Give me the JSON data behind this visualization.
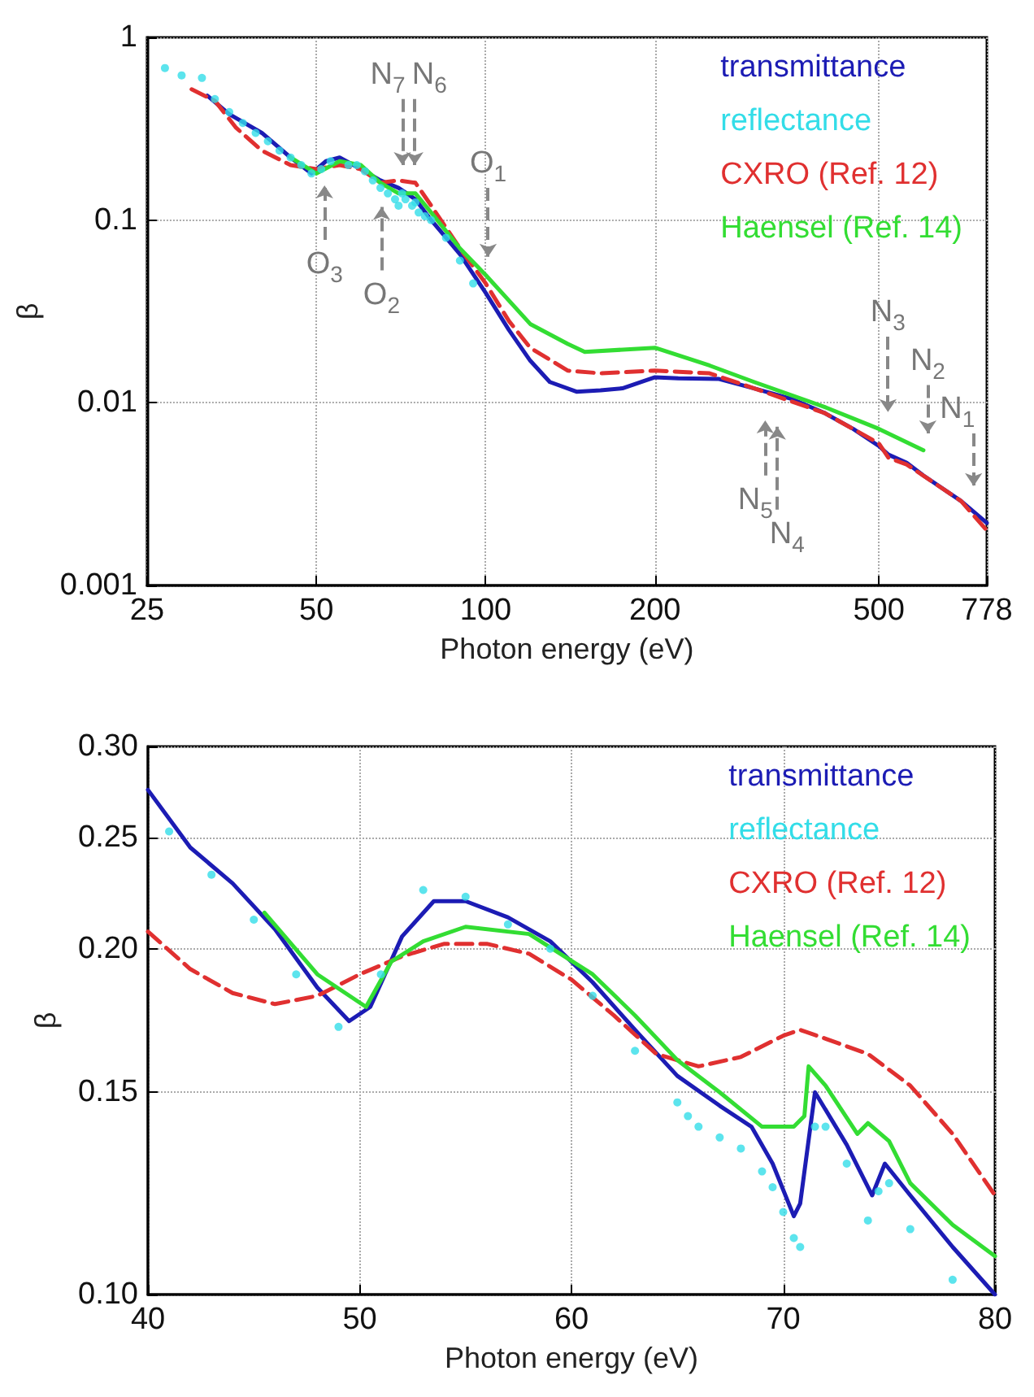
{
  "chart_data": [
    {
      "type": "line",
      "xlabel": "Photon energy (eV)",
      "ylabel": "β",
      "log": "xy",
      "grid": true,
      "legend": "top right",
      "marker": "none",
      "xlim": [
        25,
        778
      ],
      "xticks": [
        25,
        50,
        100,
        200,
        500,
        778
      ],
      "ylim": [
        0.001,
        1
      ],
      "yticks": [
        0.001,
        0.01,
        0.1,
        1
      ],
      "series": [
        {
          "name": "transmittance",
          "color": "#1c1cb4",
          "x": [
            32,
            35,
            40,
            45,
            49,
            52,
            55,
            60,
            65,
            70,
            75,
            80,
            90,
            100,
            110,
            120,
            130,
            145,
            160,
            175,
            200,
            220,
            260,
            300,
            350,
            400,
            450,
            500,
            520,
            560,
            600,
            700,
            778
          ],
          "values": [
            0.48,
            0.38,
            0.3,
            0.22,
            0.18,
            0.21,
            0.22,
            0.19,
            0.165,
            0.15,
            0.13,
            0.1,
            0.065,
            0.04,
            0.025,
            0.017,
            0.013,
            0.0115,
            0.0117,
            0.012,
            0.0138,
            0.0136,
            0.0135,
            0.012,
            0.0105,
            0.0088,
            0.0072,
            0.0058,
            0.0052,
            0.0047,
            0.004,
            0.0029,
            0.0022
          ]
        },
        {
          "name": "reflectance",
          "type": "scatter",
          "marker": "circle",
          "color": "#33dde8",
          "x": [
            26.9,
            28.8,
            31.3,
            33,
            35,
            37,
            39,
            41,
            43,
            45,
            47,
            49,
            51,
            53,
            57,
            59,
            61,
            63,
            65,
            67,
            69,
            70,
            71,
            72,
            74,
            75,
            76,
            78,
            80,
            85,
            90,
            95
          ],
          "values": [
            0.68,
            0.62,
            0.6,
            0.46,
            0.39,
            0.34,
            0.3,
            0.27,
            0.24,
            0.22,
            0.2,
            0.18,
            0.19,
            0.21,
            0.2,
            0.2,
            0.185,
            0.165,
            0.15,
            0.14,
            0.13,
            0.12,
            0.14,
            0.13,
            0.12,
            0.125,
            0.11,
            0.105,
            0.1,
            0.08,
            0.06,
            0.045
          ]
        },
        {
          "name": "CXRO (Ref. 12)",
          "color": "#e03030",
          "line_style": "dashed",
          "x": [
            30,
            33,
            36,
            40,
            45,
            50,
            55,
            60,
            65,
            70,
            75,
            80,
            90,
            100,
            110,
            120,
            140,
            160,
            200,
            250,
            300,
            400,
            500,
            520,
            560,
            700,
            778
          ],
          "values": [
            0.52,
            0.45,
            0.32,
            0.24,
            0.2,
            0.19,
            0.2,
            0.19,
            0.16,
            0.165,
            0.16,
            0.12,
            0.07,
            0.045,
            0.028,
            0.02,
            0.015,
            0.0145,
            0.015,
            0.0145,
            0.012,
            0.0088,
            0.006,
            0.005,
            0.0046,
            0.0029,
            0.002
          ]
        },
        {
          "name": "Haensel (Ref. 14)",
          "color": "#33dd33",
          "x": [
            45,
            50,
            55,
            60,
            65,
            70,
            75,
            80,
            90,
            100,
            120,
            140,
            150,
            200,
            250,
            300,
            400,
            500,
            600
          ],
          "values": [
            0.22,
            0.18,
            0.21,
            0.2,
            0.16,
            0.14,
            0.14,
            0.11,
            0.07,
            0.05,
            0.027,
            0.021,
            0.019,
            0.02,
            0.016,
            0.013,
            0.0095,
            0.0072,
            0.0055
          ]
        }
      ],
      "annotations": [
        "N$_{7}$",
        "N$_{6}$",
        "O$_{3}$",
        "O$_{2}$",
        "O$_{1}$",
        "N$_{5}$",
        "N$_{4}$",
        "N$_{3}$",
        "N$_{2}$",
        "N$_{1}$"
      ]
    },
    {
      "type": "line",
      "xlabel": "Photon energy (eV)",
      "ylabel": "β",
      "log": "y",
      "grid": true,
      "legend": "top right",
      "marker": "none",
      "xlim": [
        40,
        80
      ],
      "xticks": [
        40,
        50,
        60,
        70,
        80
      ],
      "ylim": [
        0.1,
        0.3
      ],
      "yticks": [
        {
          "value": 0.1,
          "label": "0.10"
        },
        {
          "value": 0.15,
          "label": "0.15"
        },
        {
          "value": 0.2,
          "label": "0.20"
        },
        {
          "value": 0.25,
          "label": "0.25"
        },
        {
          "value": 0.3,
          "label": "0.30"
        }
      ],
      "series": [
        {
          "name": "transmittance",
          "color": "#1c1cb4",
          "x": [
            40,
            42,
            44,
            46,
            48,
            49.5,
            50.5,
            52,
            53.5,
            55,
            57,
            59,
            61,
            63,
            65,
            67,
            68.5,
            69.5,
            70.5,
            70.8,
            71.5,
            73,
            74.2,
            74.8,
            76,
            78,
            80
          ],
          "values": [
            0.275,
            0.245,
            0.228,
            0.208,
            0.185,
            0.173,
            0.178,
            0.205,
            0.22,
            0.22,
            0.213,
            0.203,
            0.187,
            0.17,
            0.155,
            0.146,
            0.14,
            0.13,
            0.117,
            0.12,
            0.15,
            0.135,
            0.122,
            0.13,
            0.122,
            0.11,
            0.1
          ]
        },
        {
          "name": "reflectance",
          "type": "scatter",
          "marker": "circle",
          "color": "#33dde8",
          "x": [
            41,
            43,
            45,
            47,
            49,
            51,
            53,
            55,
            57,
            59,
            61,
            63,
            65,
            65.5,
            66,
            67,
            68,
            69,
            69.5,
            70,
            70.5,
            70.8,
            71.5,
            72,
            73,
            74,
            74.5,
            75,
            76,
            78
          ],
          "values": [
            0.253,
            0.232,
            0.212,
            0.19,
            0.171,
            0.19,
            0.225,
            0.222,
            0.21,
            0.2,
            0.182,
            0.163,
            0.147,
            0.143,
            0.14,
            0.137,
            0.134,
            0.128,
            0.124,
            0.118,
            0.112,
            0.11,
            0.14,
            0.14,
            0.13,
            0.116,
            0.123,
            0.125,
            0.114,
            0.103
          ]
        },
        {
          "name": "CXRO (Ref. 12)",
          "color": "#e03030",
          "line_style": "dashed",
          "x": [
            40,
            42,
            44,
            46,
            48,
            50,
            52,
            54,
            56,
            58,
            60,
            62,
            64,
            66,
            68,
            70,
            70.8,
            72,
            74,
            76,
            78,
            80
          ],
          "values": [
            0.207,
            0.192,
            0.183,
            0.179,
            0.182,
            0.19,
            0.197,
            0.202,
            0.202,
            0.198,
            0.188,
            0.175,
            0.162,
            0.158,
            0.161,
            0.168,
            0.17,
            0.167,
            0.162,
            0.152,
            0.138,
            0.122
          ]
        },
        {
          "name": "Haensel (Ref. 14)",
          "color": "#33dd33",
          "x": [
            45.5,
            48,
            50.3,
            51.5,
            53,
            55,
            58,
            61,
            63,
            65,
            67,
            69,
            70.5,
            71,
            71.2,
            72,
            73.5,
            74,
            75,
            76,
            78,
            80
          ],
          "values": [
            0.215,
            0.19,
            0.178,
            0.195,
            0.203,
            0.209,
            0.206,
            0.19,
            0.175,
            0.16,
            0.15,
            0.14,
            0.14,
            0.143,
            0.158,
            0.152,
            0.138,
            0.141,
            0.136,
            0.125,
            0.115,
            0.108
          ]
        }
      ]
    }
  ]
}
